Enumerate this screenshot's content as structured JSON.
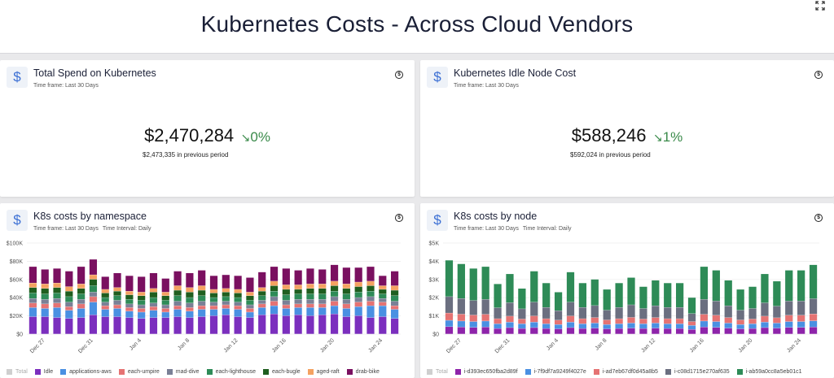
{
  "page": {
    "title": "Kubernetes Costs - Across Cloud Vendors"
  },
  "cards": {
    "total_spend": {
      "title": "Total Spend on Kubernetes",
      "timeframe": "Time frame: Last 30 Days",
      "value": "$2,470,284",
      "trend_arrow": "↘",
      "trend": "0%",
      "previous": "$2,473,335 in previous period"
    },
    "idle_cost": {
      "title": "Kubernetes Idle Node Cost",
      "timeframe": "Time frame: Last 30 Days",
      "value": "$588,246",
      "trend_arrow": "↘",
      "trend": "1%",
      "previous": "$592,024 in previous period"
    },
    "by_namespace": {
      "title": "K8s costs by namespace",
      "timeframe": "Time frame: Last 30 Days",
      "interval": "Time Interval: Daily"
    },
    "by_node": {
      "title": "K8s costs by node",
      "timeframe": "Time frame: Last 30 Days",
      "interval": "Time Interval: Daily"
    }
  },
  "icons": {
    "card_icon": "dollar-sign-icon",
    "badge": "dollar-circle-icon",
    "expand": "expand-icon"
  },
  "chart_data": [
    {
      "type": "bar",
      "stacked": true,
      "title": "K8s costs by namespace",
      "xlabel": "",
      "ylabel": "",
      "ylim": [
        0,
        100000
      ],
      "yticks": [
        "$0",
        "$20K",
        "$40K",
        "$60K",
        "$80K",
        "$100K"
      ],
      "categories": [
        "Dec 26",
        "Dec 27",
        "Dec 28",
        "Dec 29",
        "Dec 30",
        "Dec 31",
        "Jan 1",
        "Jan 2",
        "Jan 3",
        "Jan 4",
        "Jan 5",
        "Jan 6",
        "Jan 7",
        "Jan 8",
        "Jan 9",
        "Jan 10",
        "Jan 11",
        "Jan 12",
        "Jan 13",
        "Jan 14",
        "Jan 15",
        "Jan 16",
        "Jan 17",
        "Jan 18",
        "Jan 19",
        "Jan 20",
        "Jan 21",
        "Jan 22",
        "Jan 23",
        "Jan 24",
        "Jan 25"
      ],
      "xtick_labels": [
        "Dec 27",
        "Dec 31",
        "Jan 4",
        "Jan 8",
        "Jan 12",
        "Jan 16",
        "Jan 20",
        "Jan 24"
      ],
      "series": [
        {
          "name": "Total",
          "values": [
            74000,
            71000,
            72000,
            69000,
            74000,
            82000,
            63000,
            67000,
            64000,
            63000,
            67000,
            61000,
            69000,
            67000,
            70000,
            64000,
            65000,
            64000,
            62000,
            68000,
            74000,
            72000,
            70000,
            72000,
            71000,
            76000,
            73000,
            73000,
            74000,
            64000,
            69000
          ]
        },
        {
          "name": "Idle",
          "values": [
            19000,
            19000,
            18000,
            17000,
            18000,
            21000,
            19000,
            19000,
            18000,
            17000,
            18000,
            18000,
            19000,
            18000,
            19000,
            20000,
            21000,
            19000,
            18000,
            21000,
            22000,
            20000,
            21000,
            20000,
            21000,
            22000,
            19000,
            20000,
            18000,
            19000,
            17000
          ]
        },
        {
          "name": "applications-aws",
          "values": [
            10000,
            9000,
            11000,
            9000,
            10000,
            14000,
            8000,
            9000,
            7000,
            7000,
            8000,
            6000,
            8000,
            7000,
            8000,
            7000,
            7000,
            8000,
            6000,
            8000,
            9000,
            8000,
            8000,
            9000,
            8000,
            9000,
            9000,
            10000,
            13000,
            12000,
            10000
          ]
        },
        {
          "name": "each-umpire",
          "values": [
            5000,
            5000,
            5000,
            4000,
            5000,
            6000,
            4000,
            4000,
            4000,
            4000,
            4000,
            4000,
            4000,
            4000,
            4000,
            4000,
            4000,
            4000,
            4000,
            4000,
            5000,
            4000,
            4000,
            4000,
            4000,
            5000,
            5000,
            5000,
            5000,
            4000,
            4000
          ]
        },
        {
          "name": "mad-dive",
          "values": [
            5000,
            5000,
            5000,
            5000,
            5000,
            5000,
            4000,
            5000,
            4000,
            4000,
            4000,
            4000,
            5000,
            5000,
            5000,
            4000,
            4000,
            4000,
            4000,
            4000,
            5000,
            5000,
            5000,
            5000,
            5000,
            5000,
            5000,
            5000,
            5000,
            4000,
            5000
          ]
        },
        {
          "name": "each-lighthouse",
          "values": [
            6000,
            6000,
            6000,
            6000,
            6000,
            7000,
            5000,
            5000,
            5000,
            5000,
            6000,
            5000,
            6000,
            6000,
            6000,
            5000,
            5000,
            5000,
            5000,
            5000,
            6000,
            6000,
            6000,
            6000,
            6000,
            6000,
            6000,
            6000,
            6000,
            5000,
            6000
          ]
        },
        {
          "name": "each-bugle",
          "values": [
            6000,
            6000,
            6000,
            6000,
            6000,
            7000,
            5000,
            5000,
            5000,
            5000,
            6000,
            5000,
            6000,
            6000,
            6000,
            5000,
            5000,
            5000,
            5000,
            5000,
            6000,
            6000,
            5000,
            6000,
            6000,
            6000,
            6000,
            6000,
            6000,
            5000,
            6000
          ]
        },
        {
          "name": "aged-raft",
          "values": [
            5000,
            5000,
            5000,
            5000,
            5000,
            5000,
            4000,
            4000,
            4000,
            4000,
            4000,
            4000,
            5000,
            5000,
            5000,
            4000,
            4000,
            4000,
            4000,
            4000,
            5000,
            5000,
            5000,
            5000,
            5000,
            5000,
            5000,
            5000,
            5000,
            4000,
            5000
          ]
        },
        {
          "name": "drab-bike",
          "values": [
            18000,
            16000,
            16000,
            17000,
            19000,
            17000,
            14000,
            16000,
            17000,
            17000,
            17000,
            15000,
            16000,
            16000,
            17000,
            15000,
            15000,
            15000,
            16000,
            17000,
            16000,
            18000,
            16000,
            17000,
            16000,
            18000,
            18000,
            16000,
            16000,
            11000,
            16000
          ]
        }
      ]
    },
    {
      "type": "bar",
      "stacked": true,
      "title": "K8s costs by node",
      "xlabel": "",
      "ylabel": "",
      "ylim": [
        0,
        5000
      ],
      "yticks": [
        "$0",
        "$1K",
        "$2K",
        "$3K",
        "$4K",
        "$5K"
      ],
      "categories": [
        "Dec 26",
        "Dec 27",
        "Dec 28",
        "Dec 29",
        "Dec 30",
        "Dec 31",
        "Jan 1",
        "Jan 2",
        "Jan 3",
        "Jan 4",
        "Jan 5",
        "Jan 6",
        "Jan 7",
        "Jan 8",
        "Jan 9",
        "Jan 10",
        "Jan 11",
        "Jan 12",
        "Jan 13",
        "Jan 14",
        "Jan 15",
        "Jan 16",
        "Jan 17",
        "Jan 18",
        "Jan 19",
        "Jan 20",
        "Jan 21",
        "Jan 22",
        "Jan 23",
        "Jan 24",
        "Jan 25"
      ],
      "xtick_labels": [
        "Dec 27",
        "Dec 31",
        "Jan 4",
        "Jan 8",
        "Jan 12",
        "Jan 16",
        "Jan 20",
        "Jan 24"
      ],
      "series": [
        {
          "name": "Total",
          "values": [
            4050,
            3850,
            3600,
            3700,
            2750,
            3300,
            2500,
            3450,
            2800,
            2300,
            3400,
            2800,
            3000,
            2450,
            2800,
            3100,
            2600,
            2950,
            2800,
            2800,
            2000,
            3700,
            3500,
            2950,
            2450,
            2600,
            3300,
            2900,
            3500,
            3500,
            3800
          ]
        },
        {
          "name": "i-d393ec650fba2d89f",
          "values": [
            400,
            380,
            360,
            380,
            300,
            350,
            300,
            350,
            300,
            280,
            350,
            300,
            320,
            280,
            300,
            320,
            300,
            320,
            300,
            300,
            250,
            380,
            360,
            320,
            280,
            300,
            350,
            320,
            360,
            360,
            380
          ]
        },
        {
          "name": "i-7f9df7a9249f4027e",
          "values": [
            350,
            330,
            320,
            330,
            260,
            300,
            260,
            300,
            260,
            240,
            300,
            260,
            280,
            240,
            260,
            280,
            260,
            280,
            260,
            260,
            220,
            330,
            320,
            280,
            240,
            260,
            300,
            280,
            320,
            320,
            340
          ]
        },
        {
          "name": "i-ad7eb67df0d45a8b5",
          "values": [
            400,
            380,
            360,
            370,
            280,
            330,
            260,
            340,
            280,
            240,
            340,
            280,
            300,
            250,
            280,
            310,
            260,
            300,
            280,
            280,
            210,
            370,
            350,
            300,
            250,
            260,
            330,
            290,
            350,
            350,
            380
          ]
        },
        {
          "name": "i-c08d1715e270af635",
          "values": [
            900,
            860,
            800,
            820,
            600,
            740,
            560,
            760,
            620,
            520,
            760,
            620,
            660,
            540,
            620,
            690,
            580,
            650,
            620,
            620,
            440,
            820,
            780,
            650,
            540,
            580,
            730,
            640,
            780,
            780,
            840
          ]
        },
        {
          "name": "i-ab59a0cc8a5eb01c1",
          "values": [
            2000,
            1900,
            1760,
            1800,
            1310,
            1580,
            1120,
            1700,
            1340,
            1020,
            1650,
            1340,
            1440,
            1140,
            1340,
            1500,
            1200,
            1400,
            1340,
            1340,
            880,
            1800,
            1690,
            1400,
            1140,
            1200,
            1590,
            1370,
            1690,
            1690,
            1860
          ]
        }
      ]
    }
  ],
  "legend_namespace": [
    {
      "name": "Total",
      "color": "#cfcfcf",
      "muted": true
    },
    {
      "name": "Idle",
      "color": "#7b2fbe"
    },
    {
      "name": "applications-aws",
      "color": "#4a90e2"
    },
    {
      "name": "each-umpire",
      "color": "#e57373"
    },
    {
      "name": "mad-dive",
      "color": "#7a8096"
    },
    {
      "name": "each-lighthouse",
      "color": "#2e8b57"
    },
    {
      "name": "each-bugle",
      "color": "#1f5e1f"
    },
    {
      "name": "aged-raft",
      "color": "#f4a261"
    },
    {
      "name": "drab-bike",
      "color": "#7a1060"
    }
  ],
  "legend_node": [
    {
      "name": "Total",
      "color": "#cfcfcf",
      "muted": true
    },
    {
      "name": "i-d393ec650fba2d89f",
      "color": "#8e24aa"
    },
    {
      "name": "i-7f9df7a9249f4027e",
      "color": "#4a90e2"
    },
    {
      "name": "i-ad7eb67df0d45a8b5",
      "color": "#e57373"
    },
    {
      "name": "i-c08d1715e270af635",
      "color": "#6b6f80"
    },
    {
      "name": "i-ab59a0cc8a5eb01c1",
      "color": "#2e8b57"
    }
  ]
}
